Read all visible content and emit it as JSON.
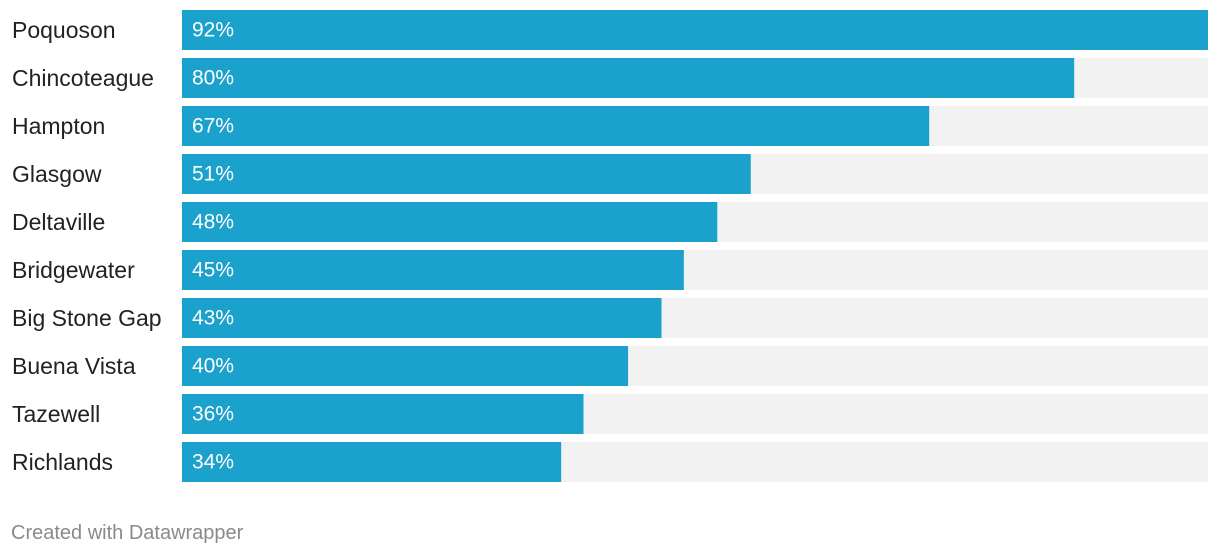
{
  "chart_data": {
    "type": "bar",
    "orientation": "horizontal",
    "categories": [
      "Poquoson",
      "Chincoteague",
      "Hampton",
      "Glasgow",
      "Deltaville",
      "Bridgewater",
      "Big Stone Gap",
      "Buena Vista",
      "Tazewell",
      "Richlands"
    ],
    "values": [
      92,
      80,
      67,
      51,
      48,
      45,
      43,
      40,
      36,
      34
    ],
    "value_labels": [
      "92%",
      "80%",
      "67%",
      "51%",
      "48%",
      "45%",
      "43%",
      "40%",
      "36%",
      "34%"
    ],
    "xlim": [
      0,
      92
    ],
    "grid": false,
    "colors": {
      "bar": "#1aa1cc",
      "track": "#f2f2f2"
    }
  },
  "footer": {
    "credit": "Created with Datawrapper"
  }
}
